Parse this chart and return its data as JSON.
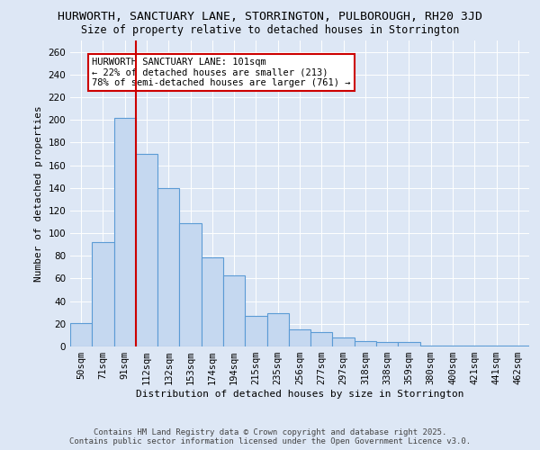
{
  "title_line1": "HURWORTH, SANCTUARY LANE, STORRINGTON, PULBOROUGH, RH20 3JD",
  "title_line2": "Size of property relative to detached houses in Storrington",
  "xlabel": "Distribution of detached houses by size in Storrington",
  "ylabel": "Number of detached properties",
  "categories": [
    "50sqm",
    "71sqm",
    "91sqm",
    "112sqm",
    "132sqm",
    "153sqm",
    "174sqm",
    "194sqm",
    "215sqm",
    "235sqm",
    "256sqm",
    "277sqm",
    "297sqm",
    "318sqm",
    "338sqm",
    "359sqm",
    "380sqm",
    "400sqm",
    "421sqm",
    "441sqm",
    "462sqm"
  ],
  "values": [
    21,
    92,
    202,
    170,
    140,
    109,
    79,
    63,
    27,
    29,
    15,
    13,
    8,
    5,
    4,
    4,
    1,
    1,
    1,
    1,
    1
  ],
  "bar_color": "#c5d8f0",
  "bar_edge_color": "#5b9bd5",
  "vline_x": 2.5,
  "vline_color": "#cc0000",
  "annotation_text": "HURWORTH SANCTUARY LANE: 101sqm\n← 22% of detached houses are smaller (213)\n78% of semi-detached houses are larger (761) →",
  "annotation_box_color": "#ffffff",
  "annotation_box_edge": "#cc0000",
  "background_color": "#dde7f5",
  "plot_bg_color": "#dde7f5",
  "footer_line1": "Contains HM Land Registry data © Crown copyright and database right 2025.",
  "footer_line2": "Contains public sector information licensed under the Open Government Licence v3.0.",
  "ylim": [
    0,
    270
  ],
  "yticks": [
    0,
    20,
    40,
    60,
    80,
    100,
    120,
    140,
    160,
    180,
    200,
    220,
    240,
    260
  ],
  "title_fontsize": 9.5,
  "subtitle_fontsize": 8.5,
  "axis_label_fontsize": 8,
  "tick_fontsize": 7.5,
  "annotation_fontsize": 7.5,
  "footer_fontsize": 6.5
}
